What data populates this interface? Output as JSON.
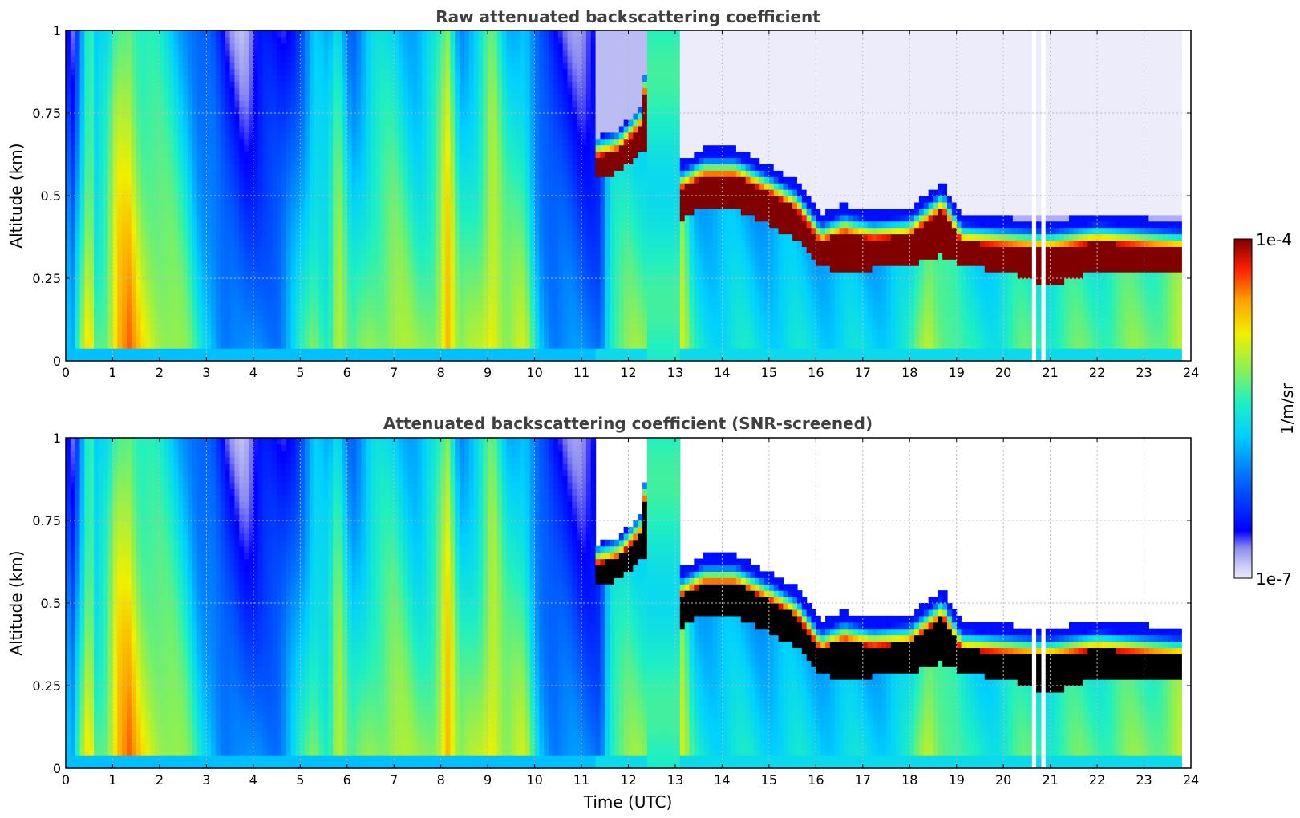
{
  "chart_data": [
    {
      "type": "heatmap",
      "title": "Raw attenuated backscattering coefficient",
      "xlabel": "",
      "ylabel": "Altitude (km)",
      "xlim": [
        0,
        24
      ],
      "ylim": [
        0,
        1
      ],
      "xticks": [
        "0",
        "1",
        "2",
        "3",
        "4",
        "5",
        "6",
        "7",
        "8",
        "9",
        "10",
        "11",
        "12",
        "13",
        "14",
        "15",
        "16",
        "17",
        "18",
        "19",
        "20",
        "21",
        "22",
        "23",
        "24"
      ],
      "yticks": [
        "0",
        "0.25",
        "0.5",
        "0.75",
        "1"
      ],
      "grid": true,
      "data_end_hour": 23.8,
      "cloud_layer": {
        "segments": [
          {
            "t": [
              11.35,
              12.25
            ],
            "base_km": [
              0.56,
              0.62
            ],
            "top_km": [
              0.66,
              0.76
            ]
          },
          {
            "t": [
              13.1,
              16.0
            ],
            "base_km": [
              0.42,
              0.33
            ],
            "top_km": [
              0.6,
              0.5
            ]
          },
          {
            "t": [
              16.0,
              18.7
            ],
            "base_km": [
              0.26,
              0.29
            ],
            "top_km": [
              0.42,
              0.45
            ]
          },
          {
            "t": [
              18.7,
              23.8
            ],
            "base_km": [
              0.28,
              0.27
            ],
            "top_km": [
              0.42,
              0.4
            ]
          }
        ],
        "value": "1e-4"
      },
      "screened_black_core": false
    },
    {
      "type": "heatmap",
      "title": "Attenuated backscattering coefficient (SNR-screened)",
      "xlabel": "Time (UTC)",
      "ylabel": "Altitude (km)",
      "xlim": [
        0,
        24
      ],
      "ylim": [
        0,
        1
      ],
      "xticks": [
        "0",
        "1",
        "2",
        "3",
        "4",
        "5",
        "6",
        "7",
        "8",
        "9",
        "10",
        "11",
        "12",
        "13",
        "14",
        "15",
        "16",
        "17",
        "18",
        "19",
        "20",
        "21",
        "22",
        "23",
        "24"
      ],
      "yticks": [
        "0",
        "0.25",
        "0.5",
        "0.75",
        "1"
      ],
      "grid": true,
      "data_end_hour": 23.8,
      "screened_black_core": true
    }
  ],
  "colorbar": {
    "label": "1/m/sr",
    "max_label": "1e-4",
    "min_label": "1e-7",
    "colormap": "jet-with-pale-blue-low-end",
    "overflow_color": "#000000",
    "orientation": "vertical",
    "placement": "right"
  }
}
